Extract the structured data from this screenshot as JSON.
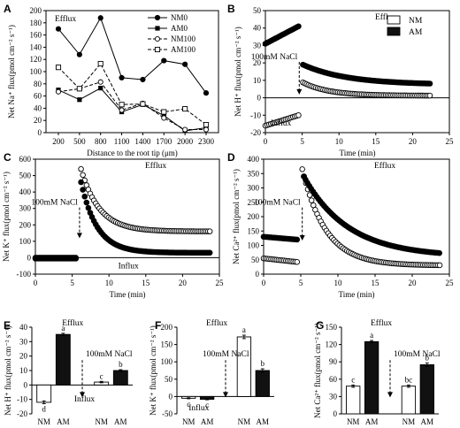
{
  "chart_data": [
    {
      "panel": "A",
      "type": "line",
      "annotation": "Efflux",
      "xlabel": "Distance to the root tip  (μm)",
      "ylabel": "Net Na⁺ flux(pmol cm⁻² s⁻¹)",
      "categories": [
        "200",
        "500",
        "800",
        "1100",
        "1400",
        "1700",
        "2000",
        "2300"
      ],
      "ylim": [
        0,
        200
      ],
      "yticks": [
        0,
        20,
        40,
        60,
        80,
        100,
        120,
        140,
        160,
        180,
        200
      ],
      "legend": "top-right",
      "series": [
        {
          "name": "NM0",
          "values": [
            170,
            128,
            188,
            90,
            87,
            118,
            112,
            65
          ],
          "marker": "filled-circle",
          "dash": false
        },
        {
          "name": "AM0",
          "values": [
            70,
            54,
            73,
            34,
            46,
            28,
            3,
            8
          ],
          "marker": "filled-square",
          "dash": false
        },
        {
          "name": "NM100",
          "values": [
            67,
            72,
            83,
            37,
            48,
            24,
            5,
            5
          ],
          "marker": "open-circle",
          "dash": true
        },
        {
          "name": "AM100",
          "values": [
            107,
            72,
            113,
            46,
            47,
            34,
            39,
            13
          ],
          "marker": "open-square",
          "dash": true
        }
      ]
    },
    {
      "panel": "B",
      "type": "scatter",
      "annotation": "Efflux",
      "annotation2": "Influx",
      "arrow_label": "100mM NaCl",
      "arrow_x": 4.6,
      "xlabel": "Time  (min)",
      "ylabel": "Net H⁺ flux(pmol cm⁻² s⁻¹)",
      "xlim": [
        0,
        25
      ],
      "ylim": [
        -20,
        50
      ],
      "xticks": [
        0,
        5,
        10,
        15,
        20,
        25
      ],
      "yticks": [
        -20,
        -10,
        0,
        10,
        20,
        30,
        40,
        50
      ],
      "legend": "top-right",
      "series": [
        {
          "name": "NM",
          "style": "open",
          "x_start": 0,
          "x_break": 4.5,
          "x_restart": 5.1,
          "x_end": 22.5,
          "pre": [
            -16,
            -10
          ],
          "post_start": 8.8,
          "post_end": 1.2,
          "decay": 3.5
        },
        {
          "name": "AM",
          "style": "filled",
          "x_start": 0,
          "x_break": 4.5,
          "x_restart": 5.1,
          "x_end": 22.5,
          "pre": [
            31,
            41
          ],
          "post_start": 19,
          "post_end": 7.5,
          "decay": 6
        }
      ]
    },
    {
      "panel": "C",
      "type": "scatter",
      "annotation": "Efflux",
      "annotation2": "Influx",
      "arrow_label": "100mM NaCl",
      "arrow_x": 6.0,
      "xlabel": "Time  (min)",
      "ylabel": "Net K⁺ flux(pmol cm⁻² s⁻¹)",
      "xlim": [
        0,
        25
      ],
      "ylim": [
        -100,
        600
      ],
      "xticks": [
        0,
        5,
        10,
        15,
        20,
        25
      ],
      "yticks": [
        -100,
        0,
        100,
        200,
        300,
        400,
        500,
        600
      ],
      "series": [
        {
          "name": "NM",
          "style": "open",
          "x_start": 0,
          "x_break": 5.6,
          "x_restart": 6.2,
          "x_end": 23.8,
          "pre": [
            0,
            0
          ],
          "post_start": 540,
          "post_end": 160,
          "decay": 2.5
        },
        {
          "name": "AM",
          "style": "filled",
          "x_start": 0,
          "x_break": 5.6,
          "x_restart": 6.2,
          "x_end": 23.8,
          "pre": [
            -5,
            -5
          ],
          "post_start": 460,
          "post_end": 30,
          "decay": 2.2
        }
      ]
    },
    {
      "panel": "D",
      "type": "scatter",
      "annotation": "Efflux",
      "arrow_label": "100mM NaCl",
      "arrow_x": 5.2,
      "xlabel": "Time  (min)",
      "ylabel": "Net Ca²⁺ flux(pmol cm⁻² s⁻¹)",
      "xlim": [
        0,
        25
      ],
      "ylim": [
        0,
        400
      ],
      "xticks": [
        0,
        5,
        10,
        15,
        20,
        25
      ],
      "yticks": [
        0,
        50,
        100,
        150,
        200,
        250,
        300,
        350,
        400
      ],
      "series": [
        {
          "name": "NM",
          "style": "open",
          "x_start": 0,
          "x_break": 4.6,
          "x_restart": 5.2,
          "x_end": 23.8,
          "pre": [
            55,
            42
          ],
          "post_start": 365,
          "post_end": 30,
          "decay": 3.2
        },
        {
          "name": "AM",
          "style": "filled",
          "x_start": 0,
          "x_break": 4.6,
          "x_restart": 5.4,
          "x_end": 23.8,
          "pre": [
            130,
            120
          ],
          "post_start": 340,
          "post_end": 60,
          "decay": 6
        }
      ]
    },
    {
      "panel": "E",
      "type": "bar",
      "annotation": "Efflux",
      "annotation2": "Influx",
      "arrow_label": "100mM NaCl",
      "ylabel": "Net H⁺ flux(pmol cm⁻² s⁻¹)",
      "ylim": [
        -20,
        40
      ],
      "yticks": [
        -20,
        -10,
        0,
        10,
        20,
        30,
        40
      ],
      "categories": [
        "NM",
        "AM",
        "NM",
        "AM"
      ],
      "values": [
        -12,
        35,
        2,
        10
      ],
      "errors": [
        1,
        0.8,
        0.5,
        0.6
      ],
      "letters": [
        "d",
        "a",
        "c",
        "b"
      ],
      "fills": [
        "#ffffff",
        "#111111",
        "#ffffff",
        "#111111"
      ]
    },
    {
      "panel": "F",
      "type": "bar",
      "annotation": "Efflux",
      "annotation2": "Influx",
      "arrow_label": "100mM NaCl",
      "ylabel": "Net K⁺ flux(pmol cm⁻² s⁻¹)",
      "ylim": [
        -50,
        200
      ],
      "yticks": [
        -50,
        0,
        50,
        100,
        150,
        200
      ],
      "categories": [
        "NM",
        "AM",
        "NM",
        "AM"
      ],
      "values": [
        -5,
        -8,
        172,
        75
      ],
      "errors": [
        1.5,
        1.5,
        5,
        5
      ],
      "letters": [
        "c",
        "c",
        "a",
        "b"
      ],
      "fills": [
        "#ffffff",
        "#111111",
        "#ffffff",
        "#111111"
      ]
    },
    {
      "panel": "G",
      "type": "bar",
      "annotation": "Efflux",
      "arrow_label": "100mM NaCl",
      "ylabel": "Net Ca²⁺ flux(pmol cm⁻² s⁻¹)",
      "ylim": [
        0,
        150
      ],
      "yticks": [
        0,
        30,
        60,
        90,
        120,
        150
      ],
      "categories": [
        "NM",
        "AM",
        "NM",
        "AM"
      ],
      "values": [
        48,
        125,
        48,
        85
      ],
      "errors": [
        2,
        2,
        2,
        3
      ],
      "letters": [
        "c",
        "a",
        "bc",
        "b"
      ],
      "fills": [
        "#ffffff",
        "#111111",
        "#ffffff",
        "#111111"
      ]
    }
  ]
}
